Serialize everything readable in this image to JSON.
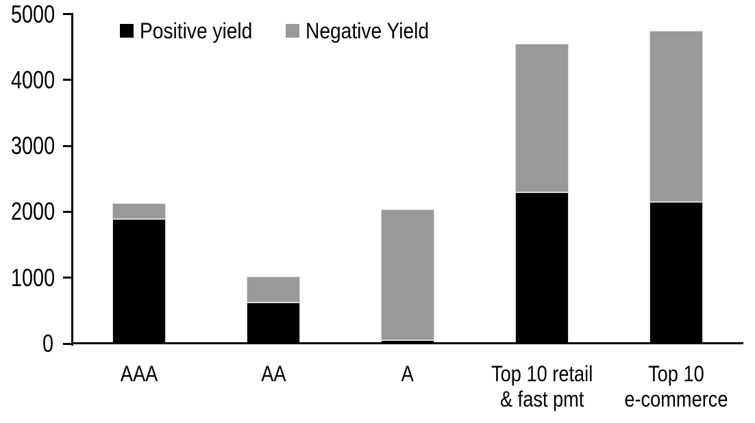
{
  "chart_data": {
    "type": "bar",
    "stacked": true,
    "title": "",
    "xlabel": "",
    "ylabel": "",
    "categories": [
      "AAA",
      "AA",
      "A",
      "Top 10 retail\n& fast pmt",
      "Top 10\ne-commerce"
    ],
    "series": [
      {
        "name": "Positive yield",
        "color": "#000000",
        "values": [
          1890,
          625,
          50,
          2295,
          2150
        ]
      },
      {
        "name": "Negative Yield",
        "color": "#999999",
        "values": [
          235,
          390,
          1985,
          2255,
          2600
        ]
      }
    ],
    "totals": [
      2125,
      1015,
      2035,
      4550,
      4750
    ],
    "ylim": [
      0,
      5000
    ],
    "yticks": [
      0,
      1000,
      2000,
      3000,
      4000,
      5000
    ],
    "grid": false,
    "legend_position": "top-left",
    "axis_color": "#000000",
    "background_color": "#ffffff"
  }
}
